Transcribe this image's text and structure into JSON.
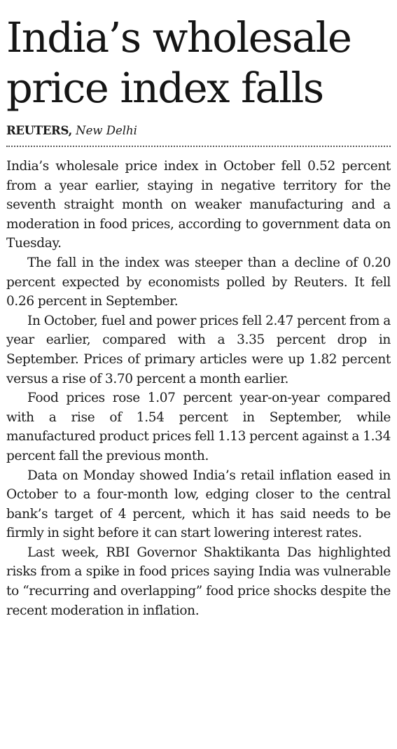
{
  "headline": {
    "line1": "India’s wholesale",
    "line2": "price index falls"
  },
  "byline": {
    "agency": "REUTERS,",
    "location": "New Delhi"
  },
  "paragraphs": [
    "India’s wholesale price index in October fell 0.52 percent from a year earlier, staying in negative territory for the seventh straight month on weaker manufacturing and a moderation in food prices, according to government data on Tuesday.",
    "The fall in the index was steeper than a decline of 0.20 percent expected by economists polled by Reuters. It fell 0.26 percent in September.",
    "In October, fuel and power prices fell 2.47 percent from a year earlier, compared with a 3.35 percent drop in September. Prices of primary articles were up 1.82 percent versus a rise of 3.70 percent a month earlier.",
    "Food prices rose 1.07 percent year-on-year compared with a rise of 1.54 percent in September, while manufactured product prices fell 1.13 percent against a 1.34 percent fall the previous month.",
    "Data on Monday showed India’s retail inflation eased in October to a four-month low, edging closer to the central bank’s target of 4 percent, which it has said needs to be firmly in sight before it can start lowering interest rates.",
    "Last week, RBI Governor Shaktikanta Das highlighted risks from a spike in food prices saying India was vulnerable to “recurring and overlapping” food price shocks despite the recent moderation in inflation."
  ]
}
